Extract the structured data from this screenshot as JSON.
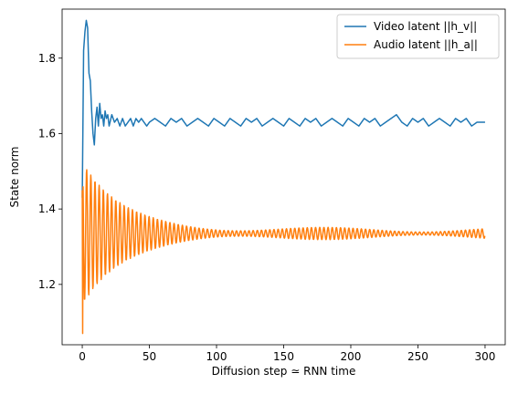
{
  "chart_data": {
    "type": "line",
    "xlabel": "Diffusion step  ≃  RNN time",
    "ylabel": "State norm",
    "xlim": [
      -15,
      315
    ],
    "ylim": [
      1.04,
      1.93
    ],
    "xticks": [
      0,
      50,
      100,
      150,
      200,
      250,
      300
    ],
    "yticks": [
      1.2,
      1.4,
      1.6,
      1.8
    ],
    "ytick_labels": [
      "1.2",
      "1.4",
      "1.6",
      "1.8"
    ],
    "grid": false,
    "legend_position": "top-right",
    "series": [
      {
        "name": "Video latent ||h_v||",
        "color": "#1f77b4",
        "x": [
          0,
          1,
          2,
          3,
          4,
          5,
          6,
          7,
          8,
          9,
          10,
          11,
          12,
          13,
          14,
          15,
          16,
          17,
          18,
          19,
          20,
          22,
          24,
          26,
          28,
          30,
          32,
          34,
          36,
          38,
          40,
          42,
          44,
          46,
          48,
          50,
          54,
          58,
          62,
          66,
          70,
          74,
          78,
          82,
          86,
          90,
          94,
          98,
          102,
          106,
          110,
          114,
          118,
          122,
          126,
          130,
          134,
          138,
          142,
          146,
          150,
          154,
          158,
          162,
          166,
          170,
          174,
          178,
          182,
          186,
          190,
          194,
          198,
          202,
          206,
          210,
          214,
          218,
          222,
          226,
          230,
          234,
          238,
          242,
          246,
          250,
          254,
          258,
          262,
          266,
          270,
          274,
          278,
          282,
          286,
          290,
          294,
          298,
          300
        ],
        "y": [
          1.43,
          1.82,
          1.87,
          1.9,
          1.88,
          1.76,
          1.74,
          1.66,
          1.6,
          1.57,
          1.64,
          1.67,
          1.62,
          1.68,
          1.64,
          1.65,
          1.62,
          1.66,
          1.64,
          1.65,
          1.62,
          1.65,
          1.63,
          1.64,
          1.62,
          1.64,
          1.62,
          1.63,
          1.64,
          1.62,
          1.64,
          1.63,
          1.64,
          1.63,
          1.62,
          1.63,
          1.64,
          1.63,
          1.62,
          1.64,
          1.63,
          1.64,
          1.62,
          1.63,
          1.64,
          1.63,
          1.62,
          1.64,
          1.63,
          1.62,
          1.64,
          1.63,
          1.62,
          1.64,
          1.63,
          1.64,
          1.62,
          1.63,
          1.64,
          1.63,
          1.62,
          1.64,
          1.63,
          1.62,
          1.64,
          1.63,
          1.64,
          1.62,
          1.63,
          1.64,
          1.63,
          1.62,
          1.64,
          1.63,
          1.62,
          1.64,
          1.63,
          1.64,
          1.62,
          1.63,
          1.64,
          1.65,
          1.63,
          1.62,
          1.64,
          1.63,
          1.64,
          1.62,
          1.63,
          1.64,
          1.63,
          1.62,
          1.64,
          1.63,
          1.64,
          1.62,
          1.63,
          1.63,
          1.63
        ]
      },
      {
        "name": "Audio latent ||h_a||",
        "color": "#ff7f0e",
        "osc_start": 1.07,
        "osc_jump": 1.45,
        "osc_center": 1.335,
        "osc_amplitude": 0.18,
        "osc_decay": 28,
        "osc_floor": 0.01,
        "osc_period": 3.1,
        "x_max": 300
      }
    ]
  }
}
